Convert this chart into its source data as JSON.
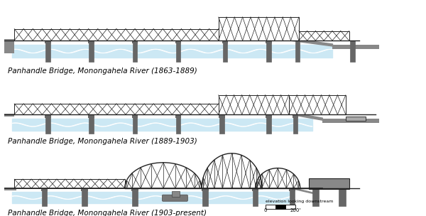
{
  "bg_color": "#ffffff",
  "water_color": "#cce8f4",
  "bridge_color": "#222222",
  "pier_color": "#666666",
  "embankment_color": "#888888",
  "labels": [
    "Panhandle Bridge, Monongahela River (1863-1889)",
    "Panhandle Bridge, Monongahela River (1889-1903)",
    "Panhandle Bridge, Monongahela River (1903-present)"
  ],
  "label_fontsize": 7.5,
  "scale_label": "elevation looking downstream",
  "figsize": [
    6.0,
    3.04
  ],
  "dpi": 100
}
